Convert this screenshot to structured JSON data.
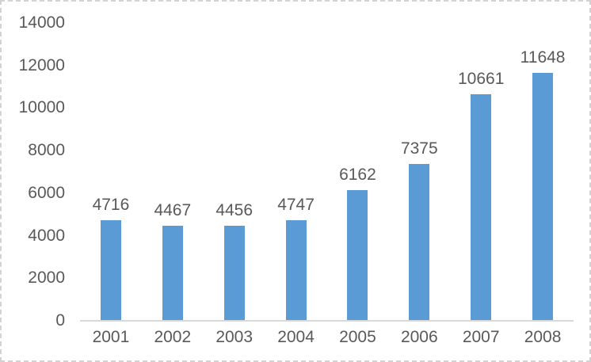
{
  "chart_data": {
    "type": "bar",
    "title": "",
    "xlabel": "",
    "ylabel": "",
    "categories": [
      "2001",
      "2002",
      "2003",
      "2004",
      "2005",
      "2006",
      "2007",
      "2008"
    ],
    "values": [
      4716,
      4467,
      4456,
      4747,
      6162,
      7375,
      10661,
      11648
    ],
    "data_labels": [
      "4716",
      "4467",
      "4456",
      "4747",
      "6162",
      "7375",
      "10661",
      "11648"
    ],
    "ylim": [
      0,
      14000
    ],
    "ytick_step": 2000,
    "yticks": [
      "0",
      "2000",
      "4000",
      "6000",
      "8000",
      "10000",
      "12000",
      "14000"
    ],
    "grid": "off",
    "legend": "none",
    "data_label_position": "above-bars",
    "colors": {
      "bar": "#5B9BD5",
      "text": "#595959",
      "axis_line": "#d9d9d9",
      "background": "#ffffff",
      "border": "#d2d2d2"
    }
  }
}
